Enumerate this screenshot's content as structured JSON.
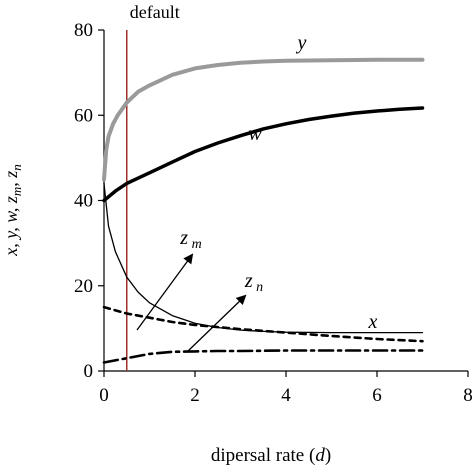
{
  "chart_data": {
    "type": "line",
    "title": "",
    "xlabel": "dipersal rate (d)",
    "ylabel": "x, y, w, zm, zn",
    "xlim": [
      0,
      8
    ],
    "ylim": [
      0,
      80
    ],
    "xticks": [
      0,
      2,
      4,
      6,
      8
    ],
    "yticks": [
      0,
      20,
      40,
      60,
      80
    ],
    "grid": false,
    "vline": {
      "x": 0.5,
      "label": "default",
      "color": "#a0302a"
    },
    "series": [
      {
        "name": "y",
        "style": "solid-thick-gray",
        "color": "#9a9a9a",
        "x": [
          0,
          0.05,
          0.1,
          0.2,
          0.3,
          0.5,
          0.75,
          1,
          1.5,
          2,
          2.5,
          3,
          3.5,
          4,
          5,
          6,
          7
        ],
        "y": [
          45,
          52,
          55,
          58,
          60,
          63,
          65.5,
          67,
          69.5,
          71,
          71.8,
          72.3,
          72.6,
          72.8,
          72.9,
          73,
          73
        ]
      },
      {
        "name": "w",
        "style": "solid-thick-black",
        "color": "#000000",
        "x": [
          0,
          0.25,
          0.5,
          1,
          1.5,
          2,
          2.5,
          3,
          3.5,
          4,
          4.5,
          5,
          5.5,
          6,
          6.5,
          7
        ],
        "y": [
          40,
          42.2,
          44,
          46.5,
          49,
          51.5,
          53.5,
          55.2,
          56.8,
          58,
          59,
          59.8,
          60.5,
          61,
          61.4,
          61.7
        ]
      },
      {
        "name": "x",
        "style": "solid-thin-black",
        "color": "#000000",
        "x": [
          0,
          0.1,
          0.25,
          0.5,
          0.75,
          1,
          1.5,
          2,
          2.5,
          3,
          3.5,
          4,
          5,
          6,
          7
        ],
        "y": [
          44,
          34,
          28,
          22,
          18.5,
          16,
          13,
          11.2,
          10.2,
          9.6,
          9.3,
          9.1,
          9,
          9,
          9
        ]
      },
      {
        "name": "z m",
        "style": "dashed-black",
        "color": "#000000",
        "x": [
          0,
          0.5,
          1,
          1.5,
          2,
          3,
          4,
          5,
          6,
          7
        ],
        "y": [
          15,
          13.5,
          12.5,
          11.5,
          10.8,
          9.8,
          9,
          8.2,
          7.5,
          7
        ]
      },
      {
        "name": "z n",
        "style": "dashdot-black",
        "color": "#000000",
        "x": [
          0,
          0.5,
          1,
          1.5,
          2,
          2.5,
          3,
          4,
          5,
          6,
          7
        ],
        "y": [
          2,
          3,
          4,
          4.5,
          4.6,
          4.7,
          4.7,
          4.8,
          4.8,
          4.8,
          4.8
        ]
      }
    ],
    "annotations": {
      "zm": {
        "main": "z",
        "sub": "m"
      },
      "zn": {
        "main": "z",
        "sub": "n"
      }
    }
  }
}
